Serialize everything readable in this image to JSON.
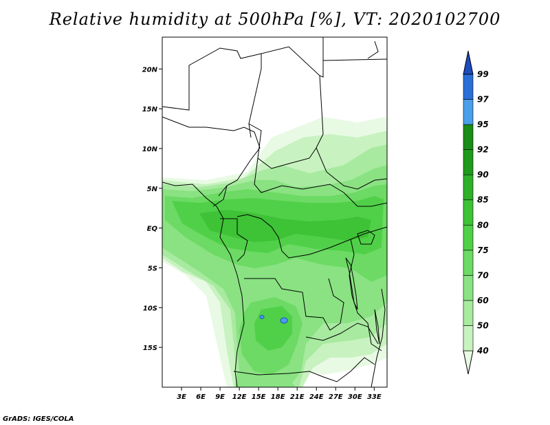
{
  "map": {
    "title": "Relative humidity at 500hPa [%], VT: 2020102700",
    "credit": "GrADS: IGES/COLA",
    "lon_range": [
      0,
      35
    ],
    "lat_range": [
      -20,
      24
    ],
    "lon_ticks": [
      {
        "value": 3,
        "label": "3E"
      },
      {
        "value": 6,
        "label": "6E"
      },
      {
        "value": 9,
        "label": "9E"
      },
      {
        "value": 12,
        "label": "12E"
      },
      {
        "value": 15,
        "label": "15E"
      },
      {
        "value": 18,
        "label": "18E"
      },
      {
        "value": 21,
        "label": "21E"
      },
      {
        "value": 24,
        "label": "24E"
      },
      {
        "value": 27,
        "label": "27E"
      },
      {
        "value": 30,
        "label": "30E"
      },
      {
        "value": 33,
        "label": "33E"
      }
    ],
    "lat_ticks": [
      {
        "value": 20,
        "label": "20N"
      },
      {
        "value": 15,
        "label": "15N"
      },
      {
        "value": 10,
        "label": "10N"
      },
      {
        "value": 5,
        "label": "5N"
      },
      {
        "value": 0,
        "label": "EQ"
      },
      {
        "value": -5,
        "label": "5S"
      },
      {
        "value": -10,
        "label": "10S"
      },
      {
        "value": -15,
        "label": "15S"
      }
    ]
  },
  "colorbar": {
    "levels": [
      "40",
      "50",
      "60",
      "70",
      "75",
      "80",
      "85",
      "90",
      "92",
      "95",
      "97",
      "99"
    ],
    "colors": [
      "#e8fae4",
      "#c8f2c0",
      "#a8eaa0",
      "#8ae282",
      "#6cda64",
      "#50d048",
      "#3ec236",
      "#2eb028",
      "#1f9a1c",
      "#1a8c18",
      "#4a9eea",
      "#2a6ed8",
      "#1c4cc0"
    ]
  }
}
